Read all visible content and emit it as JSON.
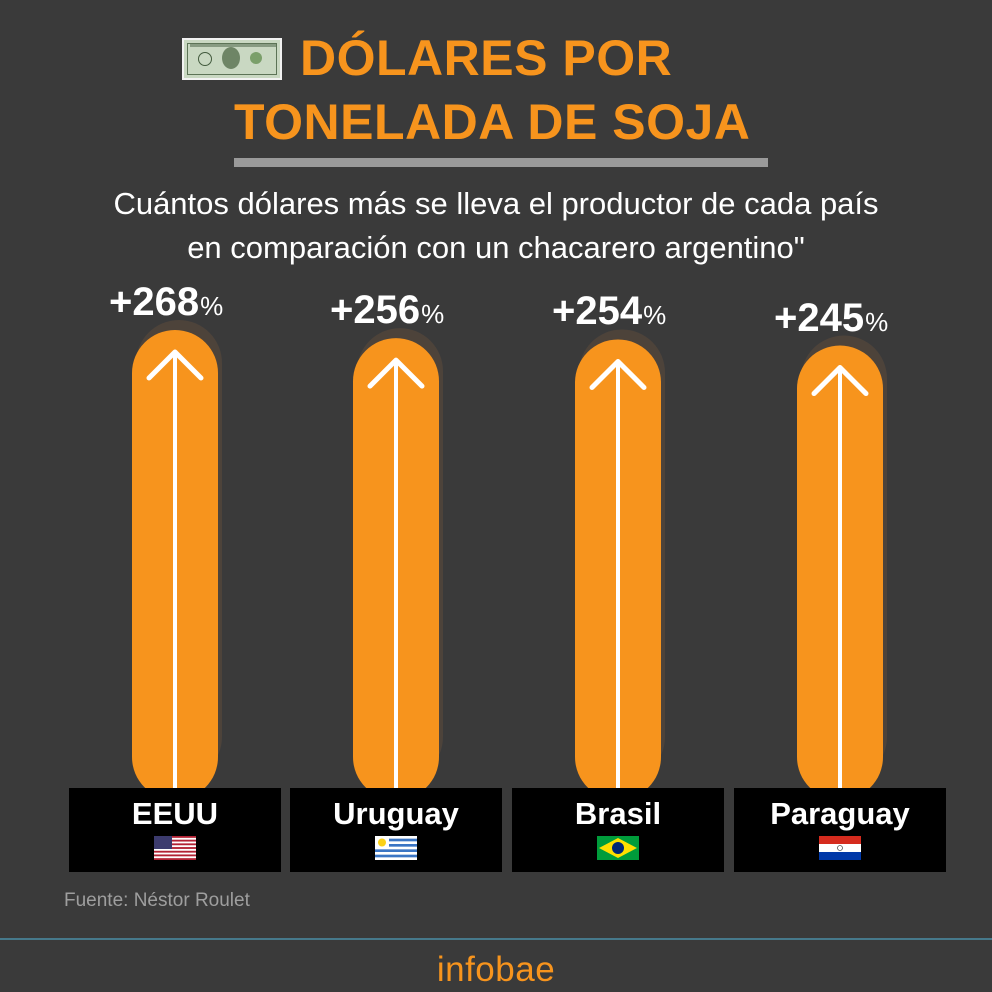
{
  "header": {
    "title_line1": "DÓLARES POR",
    "title_line2": "TONELADA DE SOJA",
    "subtitle_line1": "Cuántos dólares más se lleva el productor de cada país",
    "subtitle_line2": "en comparación con un chacarero argentino\""
  },
  "chart_data": {
    "type": "bar",
    "title": "DÓLARES POR TONELADA DE SOJA",
    "subtitle": "Cuántos dólares más se lleva el productor de cada país en comparación con un chacarero argentino\"",
    "categories": [
      "EEUU",
      "Uruguay",
      "Brasil",
      "Paraguay"
    ],
    "values": [
      268,
      256,
      254,
      245
    ],
    "value_labels": [
      "+268",
      "+256",
      "+254",
      "+245"
    ],
    "unit": "%",
    "xlabel": "",
    "ylabel": "",
    "ylim": [
      0,
      268
    ],
    "grid": false,
    "legend": "none",
    "flags": [
      "us-flag",
      "uruguay-flag",
      "brazil-flag",
      "paraguay-flag"
    ]
  },
  "colors": {
    "background": "#3a3a3a",
    "accent": "#f7941d",
    "bar_shadow": "#5a4a3a",
    "arrow": "#ffffff",
    "label_bg": "#000000"
  },
  "footer": {
    "source": "Fuente: Néstor Roulet",
    "brand": "infobae"
  }
}
